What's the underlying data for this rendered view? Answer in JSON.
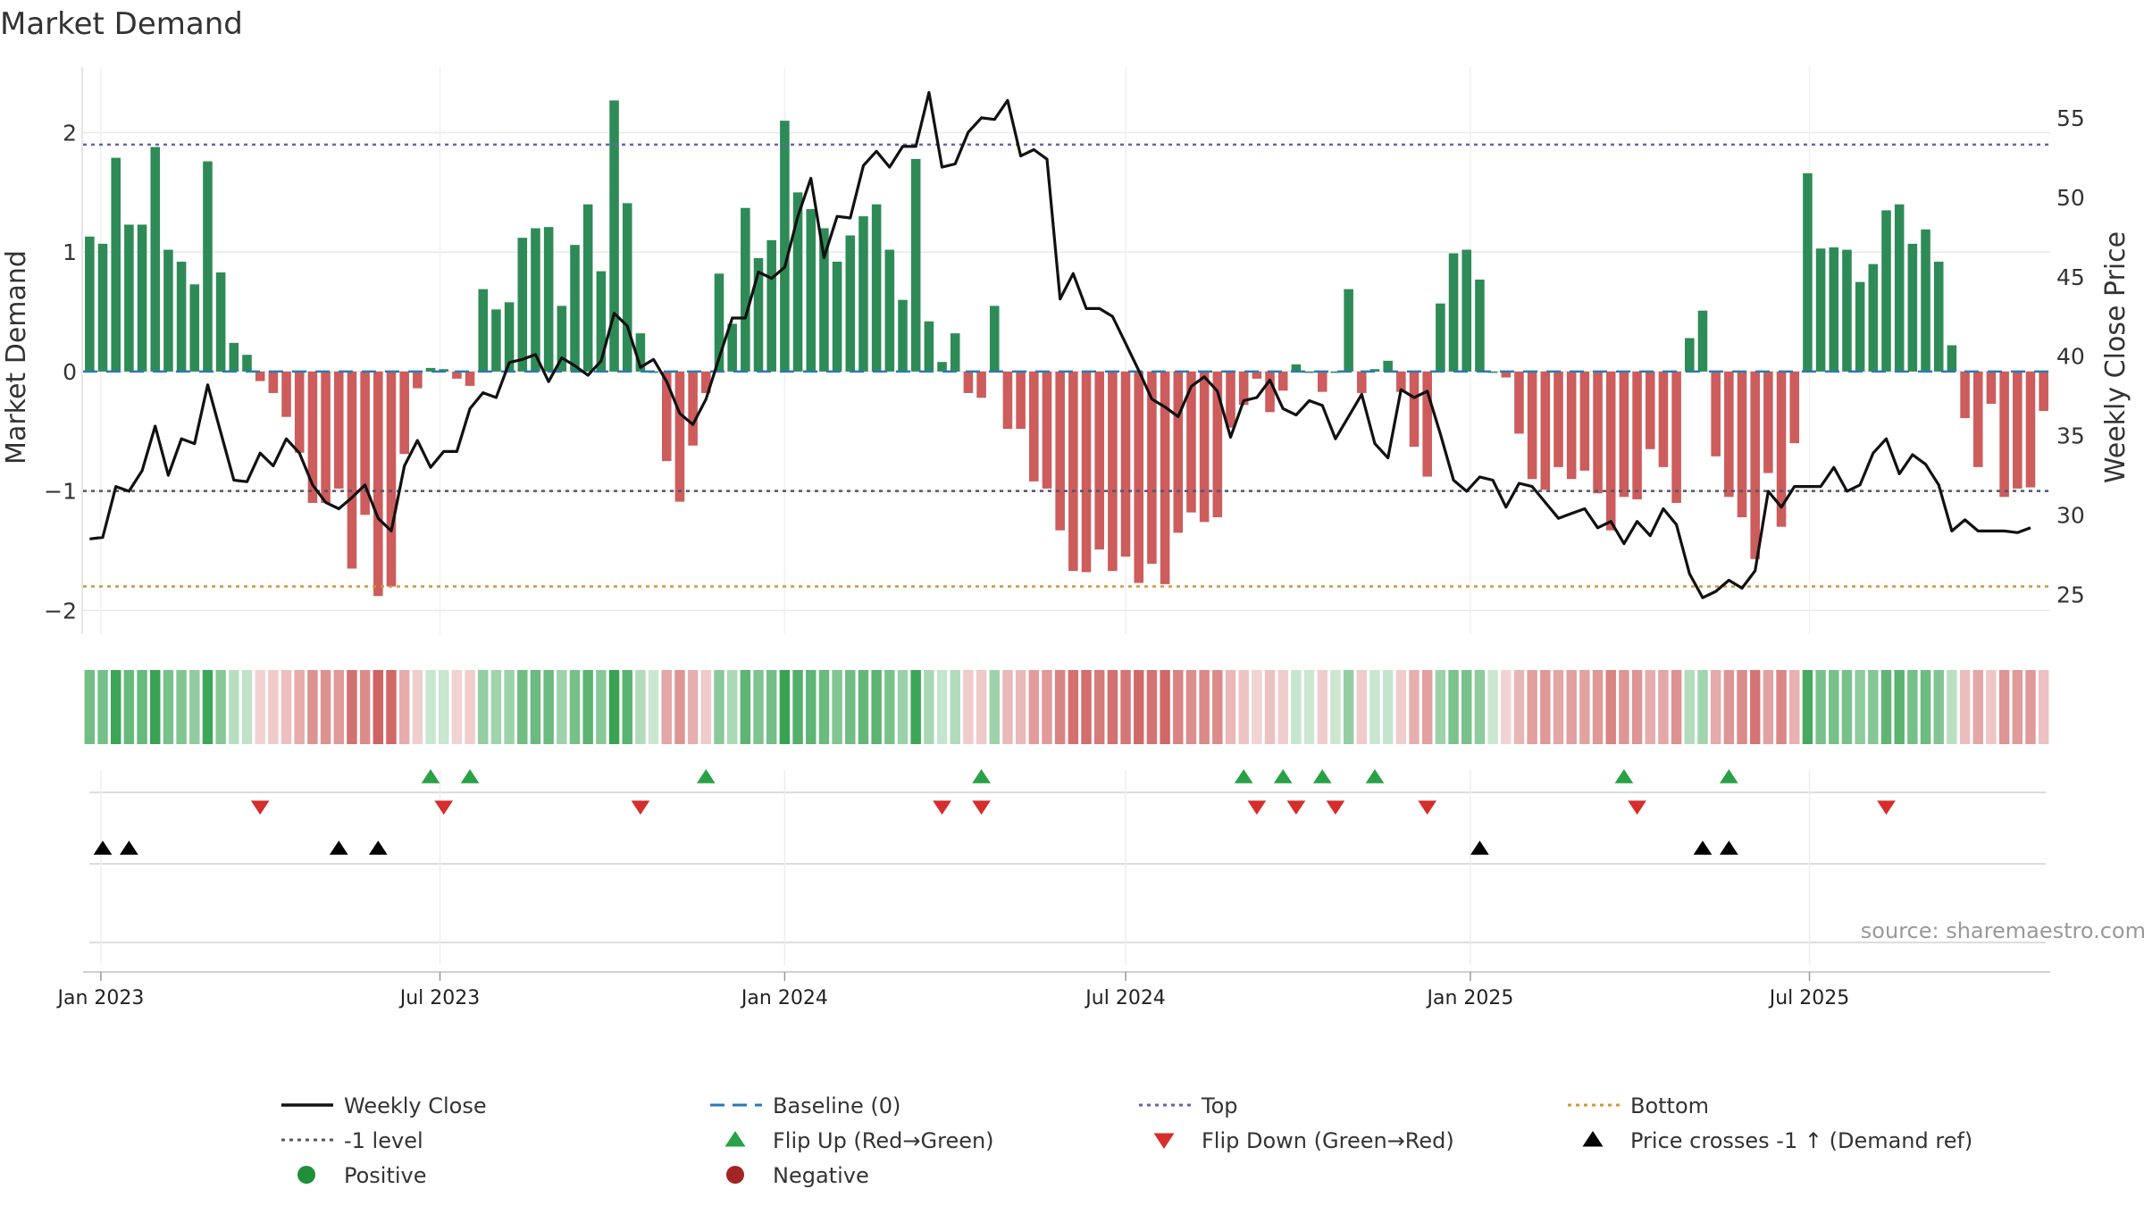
{
  "chart_data": {
    "type": "bar",
    "title": "Market Demand",
    "ylabel": "Market Demand",
    "y2label": "Weekly Close Price",
    "ylim": [
      -2.2,
      2.55
    ],
    "y2lim": [
      22.5,
      58.2
    ],
    "yticks": [
      2,
      1,
      0,
      -1,
      -2
    ],
    "yticklabels": [
      "2",
      "1",
      "0",
      "−1",
      "−2"
    ],
    "y2ticks": [
      55,
      50,
      45,
      40,
      35,
      30,
      25
    ],
    "start_date": "2022-12-26",
    "week_days": 7,
    "top_level": 1.9,
    "bottom_level": -1.8,
    "minus_one_level": -1,
    "baseline_level": 0,
    "x_ticks": [
      {
        "label": "Jan 2023",
        "date": "2023-01-01"
      },
      {
        "label": "Jul 2023",
        "date": "2023-07-01"
      },
      {
        "label": "Jan 2024",
        "date": "2024-01-01"
      },
      {
        "label": "Jul 2024",
        "date": "2024-07-01"
      },
      {
        "label": "Jan 2025",
        "date": "2025-01-01"
      },
      {
        "label": "Jul 2025",
        "date": "2025-07-01"
      }
    ],
    "series": [
      {
        "name": "Market Demand",
        "values": [
          1.13,
          1.07,
          1.79,
          1.23,
          1.23,
          1.88,
          1.02,
          0.92,
          0.73,
          1.76,
          0.83,
          0.24,
          0.14,
          -0.08,
          -0.18,
          -0.38,
          -0.68,
          -1.1,
          -1.1,
          -0.98,
          -1.65,
          -1.2,
          -1.88,
          -1.8,
          -0.69,
          -0.14,
          0.03,
          0.02,
          -0.06,
          -0.12,
          0.69,
          0.52,
          0.58,
          1.12,
          1.2,
          1.21,
          0.55,
          1.06,
          1.4,
          0.84,
          2.27,
          1.41,
          0.32,
          0,
          -0.75,
          -1.09,
          -0.62,
          -0.18,
          0.82,
          0.4,
          1.37,
          0.95,
          1.1,
          2.1,
          1.5,
          1.36,
          1.2,
          0.92,
          1.14,
          1.3,
          1.4,
          1.02,
          0.6,
          1.78,
          0.42,
          0.08,
          0.32,
          -0.18,
          -0.22,
          0.55,
          -0.48,
          -0.48,
          -0.92,
          -0.98,
          -1.33,
          -1.67,
          -1.68,
          -1.49,
          -1.67,
          -1.55,
          -1.77,
          -1.61,
          -1.78,
          -1.35,
          -1.18,
          -1.26,
          -1.22,
          -0.47,
          -0.28,
          -0.06,
          -0.34,
          -0.16,
          0.06,
          0,
          -0.17,
          0,
          0.69,
          -0.18,
          0.02,
          0.09,
          -0.17,
          -0.63,
          -0.88,
          0.57,
          0.99,
          1.02,
          0.77,
          0,
          -0.05,
          -0.52,
          -0.9,
          -0.99,
          -0.8,
          -0.9,
          -0.83,
          -1.02,
          -1.33,
          -1.05,
          -1.07,
          -0.65,
          -0.8,
          -1.1,
          0.28,
          0.51,
          -0.71,
          -1.05,
          -1.22,
          -1.57,
          -0.85,
          -1.3,
          -0.6,
          1.66,
          1.03,
          1.04,
          1.02,
          0.75,
          0.9,
          1.35,
          1.4,
          1.07,
          1.19,
          0.92,
          0.22,
          -0.39,
          -0.8,
          -0.27,
          -1.05,
          -0.98,
          -0.97,
          -0.33
        ]
      },
      {
        "name": "Weekly Close",
        "values": [
          28.5,
          28.6,
          31.8,
          31.5,
          32.8,
          35.6,
          32.5,
          34.8,
          34.5,
          38.2,
          35.2,
          32.2,
          32.1,
          33.9,
          33.1,
          34.8,
          33.9,
          31.9,
          30.8,
          30.4,
          31.1,
          31.9,
          29.8,
          29,
          33.1,
          34.7,
          33,
          34,
          34,
          36.7,
          37.7,
          37.4,
          39.6,
          39.8,
          40.1,
          38.4,
          39.9,
          39.4,
          38.8,
          39.7,
          42.7,
          41.9,
          39.3,
          39.8,
          38.4,
          36.4,
          35.7,
          37.3,
          39.9,
          42.4,
          42.4,
          45.3,
          44.9,
          45.6,
          48.8,
          51.2,
          46.2,
          48.8,
          48.7,
          52,
          52.9,
          51.9,
          53.2,
          53.2,
          56.6,
          51.9,
          52.1,
          54.1,
          55,
          54.9,
          56.1,
          52.6,
          53,
          52.4,
          43.6,
          45.2,
          43,
          43,
          42.5,
          40.8,
          39.1,
          37.3,
          36.8,
          36.2,
          38.1,
          38.7,
          37.8,
          34.9,
          37.2,
          37.4,
          38.5,
          36.7,
          36.3,
          37.2,
          36.9,
          34.8,
          36.2,
          37.6,
          34.5,
          33.6,
          37.9,
          37.4,
          37.8,
          35.1,
          32.2,
          31.5,
          32.4,
          32.2,
          30.5,
          32,
          31.8,
          30.8,
          29.8,
          30.1,
          30.4,
          29.2,
          29.6,
          28.2,
          29.6,
          28.7,
          30.4,
          29.4,
          26.3,
          24.8,
          25.2,
          25.9,
          25.4,
          26.5,
          31.5,
          30.5,
          31.8,
          31.8,
          31.8,
          33,
          31.5,
          31.9,
          33.9,
          34.8,
          32.6,
          33.8,
          33.2,
          31.9,
          29,
          29.7,
          29,
          29,
          29,
          28.9,
          29.2
        ]
      }
    ],
    "flip_up_weeks": [
      26,
      29,
      47,
      68,
      88,
      91,
      94,
      98,
      117,
      125
    ],
    "flip_down_weeks": [
      13,
      27,
      42,
      65,
      68,
      89,
      92,
      95,
      102,
      118,
      137
    ],
    "price_cross_weeks": [
      1,
      3,
      19,
      22,
      106,
      123,
      125
    ],
    "source": "source: sharemaestro.com",
    "legend": [
      {
        "label": "Weekly Close",
        "symbol": "line",
        "color": "#111111"
      },
      {
        "label": "Baseline (0)",
        "symbol": "dash",
        "color": "#2a7ab0"
      },
      {
        "label": "Top",
        "symbol": "dot",
        "color": "#6a5fb8"
      },
      {
        "label": "Bottom",
        "symbol": "dot",
        "color": "#d4943a"
      },
      {
        "label": "-1 level",
        "symbol": "dot",
        "color": "#555566"
      },
      {
        "label": "Flip Up (Red→Green)",
        "symbol": "tri-up",
        "color": "#2aa147"
      },
      {
        "label": "Flip Down (Green→Red)",
        "symbol": "tri-down",
        "color": "#d62d2d"
      },
      {
        "label": "Price crosses -1 ↑ (Demand ref)",
        "symbol": "tri-up",
        "color": "#000000"
      },
      {
        "label": "Positive",
        "symbol": "circle",
        "color": "#1f8f3a"
      },
      {
        "label": "Negative",
        "symbol": "circle",
        "color": "#a32424"
      }
    ]
  },
  "colors": {
    "positive_bar": "#2e8b57",
    "negative_bar": "#cd5c5c",
    "heat_positive": "#2e9e4a",
    "heat_negative": "#cd5c5c",
    "flip_up": "#2aa147",
    "flip_down": "#d62d2d",
    "price_line": "#111111"
  }
}
